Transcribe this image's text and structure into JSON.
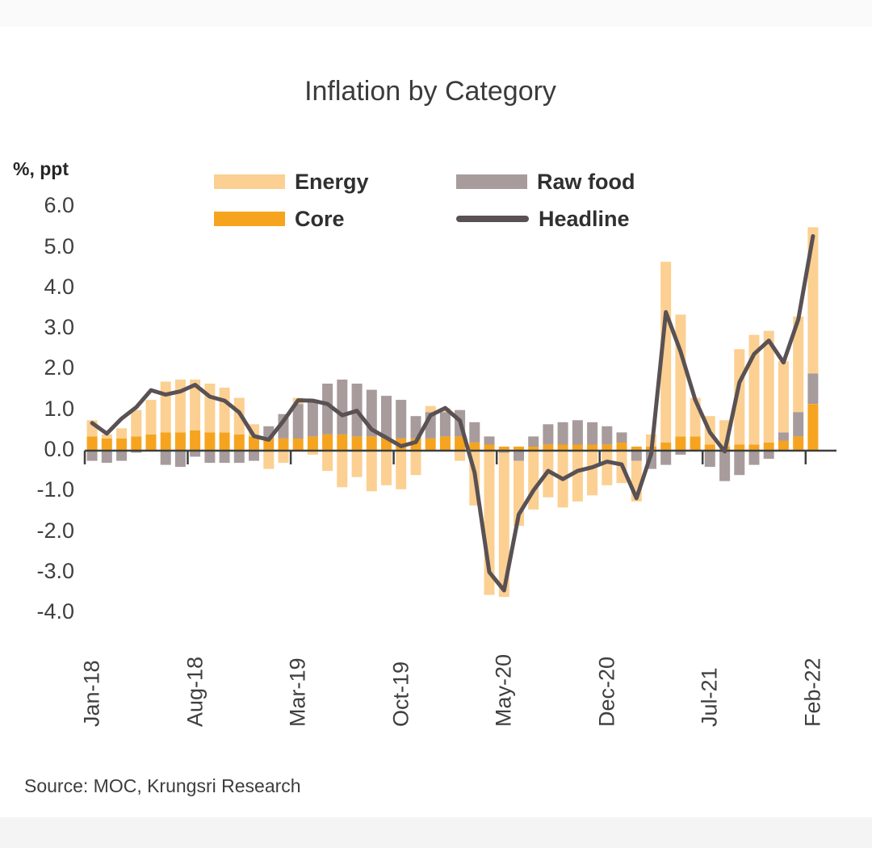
{
  "page": {
    "title": "Inflation by Category",
    "unit_label": "%, ppt",
    "source": "Source:  MOC, Krungsri Research"
  },
  "colors": {
    "energy": "#FBD092",
    "core": "#F6A41F",
    "raw_food": "#A89B9C",
    "headline": "#595153",
    "axis": "#3F3F3F",
    "text": "#3B3B3B",
    "top_strip_bg": "#FAFAFA",
    "bottom_strip_bg": "#F4F4F4"
  },
  "legend": [
    {
      "label": "Energy",
      "color": "#FBD092",
      "swatch": "box"
    },
    {
      "label": "Raw food",
      "color": "#A89B9C",
      "swatch": "box"
    },
    {
      "label": "Core",
      "color": "#F6A41F",
      "swatch": "box"
    },
    {
      "label": "Headline",
      "color": "#595153",
      "swatch": "line"
    }
  ],
  "chart_data": {
    "type": "bar",
    "subtype": "stacked-bars-with-line",
    "title": "Inflation by Category",
    "ylabel": "%, ppt",
    "xlabel": "",
    "grid": false,
    "legend_position": "top",
    "ylim": [
      -4.3,
      6.3
    ],
    "y_ticks": [
      6.0,
      5.0,
      4.0,
      3.0,
      2.0,
      1.0,
      0.0,
      -1.0,
      -2.0,
      -3.0,
      -4.0
    ],
    "y_tick_labels": [
      "6.0",
      "5.0",
      "4.0",
      "3.0",
      "2.0",
      "1.0",
      "0.0",
      "-1.0",
      "-2.0",
      "-3.0",
      "-4.0"
    ],
    "categories": [
      "Jan-18",
      "Feb-18",
      "Mar-18",
      "Apr-18",
      "May-18",
      "Jun-18",
      "Jul-18",
      "Aug-18",
      "Sep-18",
      "Oct-18",
      "Nov-18",
      "Dec-18",
      "Jan-19",
      "Feb-19",
      "Mar-19",
      "Apr-19",
      "May-19",
      "Jun-19",
      "Jul-19",
      "Aug-19",
      "Sep-19",
      "Oct-19",
      "Nov-19",
      "Dec-19",
      "Jan-20",
      "Feb-20",
      "Mar-20",
      "Apr-20",
      "May-20",
      "Jun-20",
      "Jul-20",
      "Aug-20",
      "Sep-20",
      "Oct-20",
      "Nov-20",
      "Dec-20",
      "Jan-21",
      "Feb-21",
      "Mar-21",
      "Apr-21",
      "May-21",
      "Jun-21",
      "Jul-21",
      "Aug-21",
      "Sep-21",
      "Oct-21",
      "Nov-21",
      "Dec-21",
      "Jan-22",
      "Feb-22"
    ],
    "x_tick_labels": [
      "Jan-18",
      "Aug-18",
      "Mar-19",
      "Oct-19",
      "May-20",
      "Dec-20",
      "Jul-21",
      "Feb-22"
    ],
    "x_tick_month_indices": [
      0,
      7,
      14,
      21,
      28,
      35,
      42,
      49
    ],
    "stack_order": [
      "Core",
      "Raw food",
      "Energy"
    ],
    "series": [
      {
        "name": "Core",
        "type": "bar",
        "color": "#F6A41F",
        "values": [
          0.35,
          0.3,
          0.3,
          0.35,
          0.4,
          0.45,
          0.45,
          0.5,
          0.45,
          0.45,
          0.4,
          0.35,
          0.3,
          0.3,
          0.3,
          0.35,
          0.4,
          0.4,
          0.35,
          0.35,
          0.3,
          0.3,
          0.3,
          0.3,
          0.35,
          0.35,
          0.2,
          0.15,
          0.1,
          0.1,
          0.1,
          0.15,
          0.15,
          0.15,
          0.15,
          0.15,
          0.2,
          0.1,
          0.1,
          0.2,
          0.35,
          0.35,
          0.15,
          0.1,
          0.15,
          0.15,
          0.2,
          0.25,
          0.35,
          1.15
        ]
      },
      {
        "name": "Raw food",
        "type": "bar",
        "color": "#A89B9C",
        "values": [
          -0.25,
          -0.3,
          -0.25,
          -0.05,
          0.0,
          -0.35,
          -0.4,
          -0.15,
          -0.3,
          -0.3,
          -0.3,
          -0.25,
          0.3,
          0.6,
          0.85,
          0.9,
          1.25,
          1.35,
          1.3,
          1.15,
          1.05,
          0.95,
          0.55,
          0.65,
          0.6,
          0.65,
          0.5,
          0.2,
          -0.05,
          -0.25,
          0.25,
          0.5,
          0.55,
          0.6,
          0.55,
          0.45,
          0.25,
          -0.25,
          -0.45,
          -0.35,
          -0.1,
          0.0,
          -0.4,
          -0.75,
          -0.6,
          -0.35,
          -0.2,
          0.2,
          0.6,
          0.75
        ]
      },
      {
        "name": "Energy",
        "type": "bar",
        "color": "#FBD092",
        "values": [
          0.4,
          0.1,
          0.25,
          0.65,
          0.85,
          1.25,
          1.3,
          1.25,
          1.2,
          1.1,
          0.9,
          0.3,
          -0.45,
          -0.3,
          0.15,
          -0.1,
          -0.5,
          -0.9,
          -0.65,
          -1.0,
          -0.85,
          -0.95,
          -0.6,
          0.15,
          0.1,
          -0.25,
          -1.35,
          -3.55,
          -3.55,
          -1.6,
          -1.45,
          -1.15,
          -1.4,
          -1.25,
          -1.1,
          -0.85,
          -0.8,
          -1.0,
          0.3,
          4.45,
          3.0,
          0.95,
          0.7,
          0.65,
          2.35,
          2.7,
          2.75,
          1.75,
          2.35,
          3.6
        ]
      },
      {
        "name": "Headline",
        "type": "line",
        "color": "#595153",
        "values": [
          0.68,
          0.42,
          0.79,
          1.07,
          1.49,
          1.38,
          1.46,
          1.62,
          1.33,
          1.23,
          0.94,
          0.36,
          0.27,
          0.73,
          1.24,
          1.23,
          1.15,
          0.87,
          0.98,
          0.52,
          0.32,
          0.11,
          0.21,
          0.87,
          1.05,
          0.74,
          -0.54,
          -2.99,
          -3.44,
          -1.57,
          -0.98,
          -0.5,
          -0.7,
          -0.5,
          -0.41,
          -0.27,
          -0.34,
          -1.17,
          -0.08,
          3.41,
          2.44,
          1.25,
          0.45,
          -0.02,
          1.68,
          2.38,
          2.71,
          2.17,
          3.23,
          5.28
        ]
      }
    ]
  }
}
